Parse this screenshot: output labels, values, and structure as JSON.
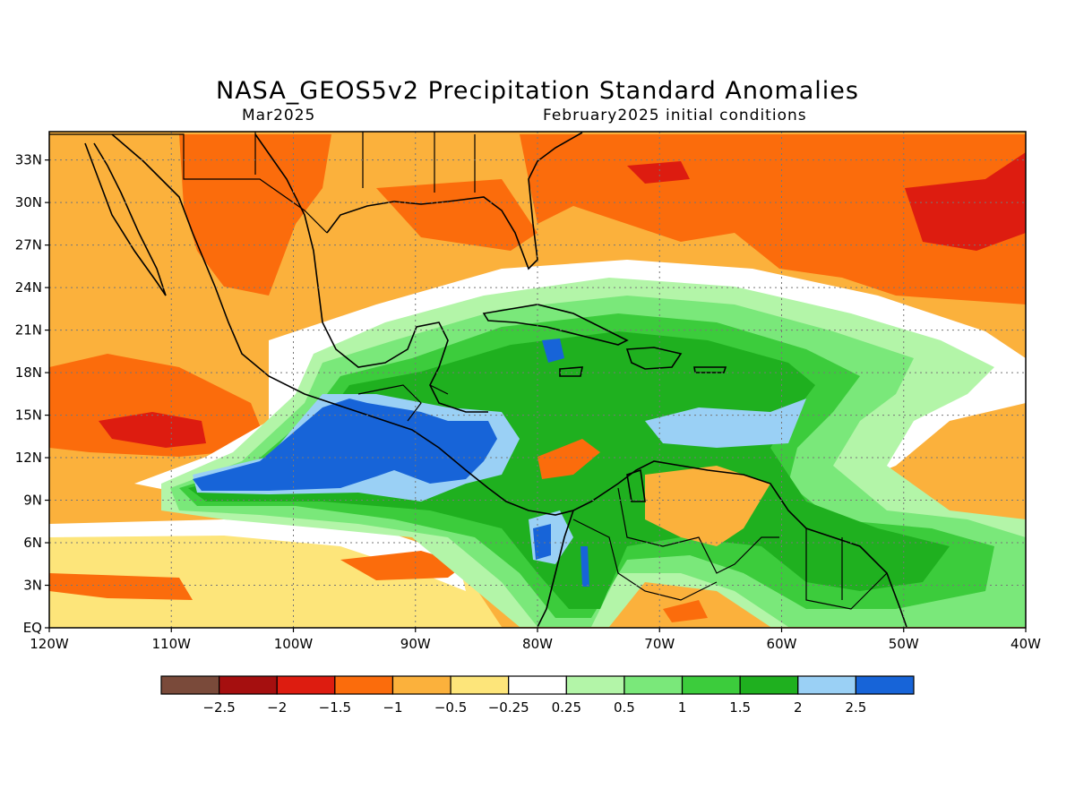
{
  "header": {
    "title": "NASA_GEOS5v2 Precipitation Standard Anomalies",
    "valid_month": "Mar2025",
    "init": "February2025 initial conditions"
  },
  "map": {
    "lat_labels": [
      "33N",
      "30N",
      "27N",
      "24N",
      "21N",
      "18N",
      "15N",
      "12N",
      "9N",
      "6N",
      "3N",
      "EQ"
    ],
    "lat_values": [
      33,
      30,
      27,
      24,
      21,
      18,
      15,
      12,
      9,
      6,
      3,
      0
    ],
    "lon_labels": [
      "120W",
      "110W",
      "100W",
      "90W",
      "80W",
      "70W",
      "60W",
      "50W",
      "40W"
    ],
    "lon_values": [
      -120,
      -110,
      -100,
      -90,
      -80,
      -70,
      -60,
      -50,
      -40
    ],
    "lat_range": [
      0,
      35
    ],
    "lon_range": [
      -120,
      -40
    ],
    "grid": "dotted"
  },
  "colorbar": {
    "colors": [
      "#7a4a3a",
      "#a50f0f",
      "#dd1c10",
      "#fb6c0c",
      "#fbb13c",
      "#fde57a",
      "#ffffff",
      "#b3f5a8",
      "#7ae87a",
      "#3ccc3c",
      "#1fb01f",
      "#9ad0f5",
      "#1764d8"
    ],
    "labels": [
      "-2.5",
      "-2",
      "-1.5",
      "-1",
      "-0.5",
      "-0.25",
      "0.25",
      "0.5",
      "1",
      "1.5",
      "2",
      "2.5"
    ]
  }
}
